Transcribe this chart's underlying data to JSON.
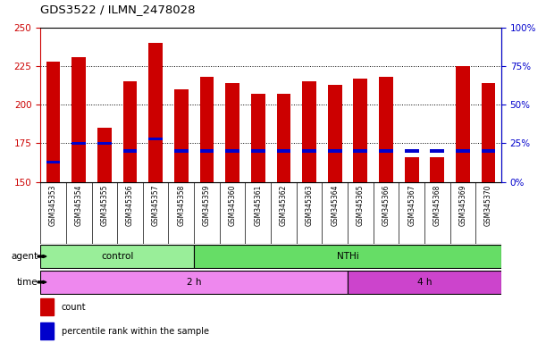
{
  "title": "GDS3522 / ILMN_2478028",
  "samples": [
    "GSM345353",
    "GSM345354",
    "GSM345355",
    "GSM345356",
    "GSM345357",
    "GSM345358",
    "GSM345359",
    "GSM345360",
    "GSM345361",
    "GSM345362",
    "GSM345363",
    "GSM345364",
    "GSM345365",
    "GSM345366",
    "GSM345367",
    "GSM345368",
    "GSM345369",
    "GSM345370"
  ],
  "count_values": [
    228,
    231,
    185,
    215,
    240,
    210,
    218,
    214,
    207,
    207,
    215,
    213,
    217,
    218,
    166,
    166,
    225,
    214
  ],
  "percentile_values": [
    13,
    25,
    25,
    20,
    28,
    20,
    20,
    20,
    20,
    20,
    20,
    20,
    20,
    20,
    20,
    20,
    20,
    20
  ],
  "bar_bottom": 150,
  "ylim_left": [
    150,
    250
  ],
  "ylim_right": [
    0,
    100
  ],
  "yticks_left": [
    150,
    175,
    200,
    225,
    250
  ],
  "yticks_right": [
    0,
    25,
    50,
    75,
    100
  ],
  "agent_groups": [
    {
      "label": "control",
      "start": 0,
      "end": 6,
      "color": "#99ee99"
    },
    {
      "label": "NTHi",
      "start": 6,
      "end": 18,
      "color": "#66dd66"
    }
  ],
  "time_groups": [
    {
      "label": "2 h",
      "start": 0,
      "end": 12,
      "color": "#ee88ee"
    },
    {
      "label": "4 h",
      "start": 12,
      "end": 18,
      "color": "#cc44cc"
    }
  ],
  "bar_color": "#cc0000",
  "blue_color": "#0000cc",
  "bar_width": 0.55,
  "left_axis_color": "#cc0000",
  "right_axis_color": "#0000cc",
  "sample_bg_color": "#d8d8d8",
  "legend_items": [
    {
      "label": "count",
      "color": "#cc0000"
    },
    {
      "label": "percentile rank within the sample",
      "color": "#0000cc"
    }
  ],
  "gridline_ticks": [
    175,
    200,
    225
  ],
  "dotted_line_color": "#555555"
}
